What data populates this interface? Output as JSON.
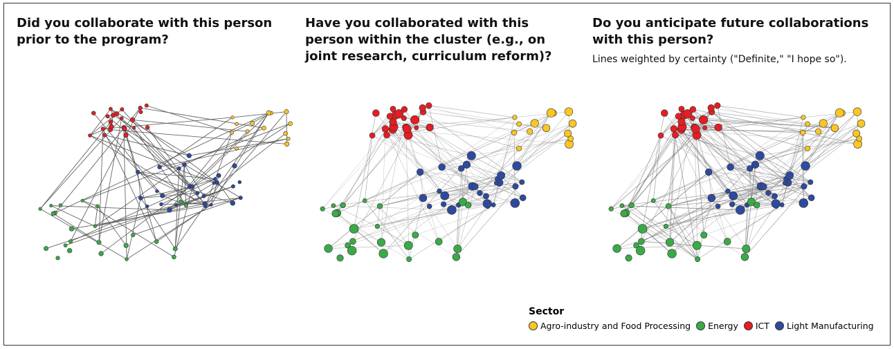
{
  "panels": [
    {
      "title": "Did you collaborate with this person prior to the program?"
    },
    {
      "title": "Have you collaborated with this person within the cluster (e.g., on joint research, curriculum reform)?"
    },
    {
      "title": "Do you anticipate future collaborations with this person?",
      "subtitle": "Lines weighted by certainty (\"Definite,\" \"I hope so\")."
    }
  ],
  "legend": {
    "title": "Sector",
    "items": [
      {
        "label": "Agro-industry and Food Processing",
        "color": "#f9c623"
      },
      {
        "label": "Energy",
        "color": "#3aaa48"
      },
      {
        "label": "ICT",
        "color": "#e31e24"
      },
      {
        "label": "Light Manufacturing",
        "color": "#2e4a9e"
      }
    ]
  }
}
